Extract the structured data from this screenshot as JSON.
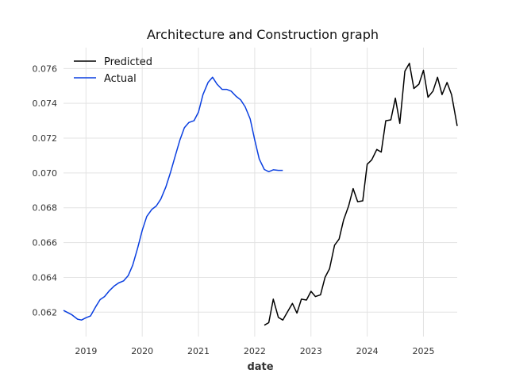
{
  "chart_data": {
    "type": "line",
    "title": "Architecture and Construction graph",
    "xlabel": "date",
    "ylabel": "",
    "xlim": [
      2018.6,
      2025.6
    ],
    "ylim": [
      0.0606,
      0.0772
    ],
    "x_ticks": [
      2019,
      2020,
      2021,
      2022,
      2023,
      2024,
      2025
    ],
    "x_tick_labels": [
      "2019",
      "2020",
      "2021",
      "2022",
      "2023",
      "2024",
      "2025"
    ],
    "y_ticks": [
      0.062,
      0.064,
      0.066,
      0.068,
      0.07,
      0.072,
      0.074,
      0.076
    ],
    "y_tick_labels": [
      "0.062",
      "0.064",
      "0.066",
      "0.068",
      "0.070",
      "0.072",
      "0.074",
      "0.076"
    ],
    "grid": true,
    "legend": {
      "position": "top-left",
      "entries": [
        "Predicted",
        "Actual"
      ]
    },
    "series": [
      {
        "name": "Predicted",
        "color": "#000000",
        "x": [
          2022.17,
          2022.25,
          2022.33,
          2022.42,
          2022.5,
          2022.58,
          2022.67,
          2022.75,
          2022.83,
          2022.92,
          2023.0,
          2023.08,
          2023.17,
          2023.25,
          2023.33,
          2023.42,
          2023.5,
          2023.58,
          2023.67,
          2023.75,
          2023.83,
          2023.92,
          2024.0,
          2024.08,
          2024.17,
          2024.25,
          2024.33,
          2024.42,
          2024.5,
          2024.58,
          2024.67,
          2024.75,
          2024.83,
          2024.92,
          2025.0,
          2025.08,
          2025.17,
          2025.25,
          2025.33,
          2025.42,
          2025.5,
          2025.6
        ],
        "y": [
          0.06125,
          0.0614,
          0.06275,
          0.0617,
          0.06155,
          0.062,
          0.0625,
          0.06195,
          0.06275,
          0.0627,
          0.0632,
          0.0629,
          0.063,
          0.064,
          0.0645,
          0.06585,
          0.0662,
          0.0673,
          0.0681,
          0.0691,
          0.06835,
          0.0684,
          0.0705,
          0.07075,
          0.07135,
          0.0712,
          0.073,
          0.07305,
          0.0743,
          0.07285,
          0.07585,
          0.0763,
          0.07485,
          0.0751,
          0.0759,
          0.07435,
          0.0747,
          0.0755,
          0.0745,
          0.0752,
          0.0745,
          0.0727
        ]
      },
      {
        "name": "Actual",
        "color": "#0a3fe0",
        "x": [
          2018.6,
          2018.75,
          2018.85,
          2018.92,
          2019.0,
          2019.08,
          2019.17,
          2019.25,
          2019.33,
          2019.42,
          2019.5,
          2019.58,
          2019.67,
          2019.75,
          2019.83,
          2019.92,
          2020.0,
          2020.08,
          2020.17,
          2020.25,
          2020.33,
          2020.42,
          2020.5,
          2020.58,
          2020.67,
          2020.75,
          2020.83,
          2020.92,
          2021.0,
          2021.08,
          2021.17,
          2021.25,
          2021.33,
          2021.42,
          2021.5,
          2021.58,
          2021.67,
          2021.75,
          2021.83,
          2021.92,
          2022.0,
          2022.08,
          2022.17,
          2022.25,
          2022.33,
          2022.42,
          2022.5
        ],
        "y": [
          0.0621,
          0.06185,
          0.0616,
          0.06155,
          0.06168,
          0.06178,
          0.0623,
          0.06272,
          0.0629,
          0.06325,
          0.0635,
          0.06368,
          0.0638,
          0.0641,
          0.0647,
          0.0657,
          0.0667,
          0.0675,
          0.0679,
          0.0681,
          0.0685,
          0.0692,
          0.07,
          0.0709,
          0.0719,
          0.0726,
          0.0729,
          0.073,
          0.0735,
          0.0745,
          0.0752,
          0.0755,
          0.0751,
          0.0748,
          0.0748,
          0.0747,
          0.0744,
          0.0742,
          0.0738,
          0.0731,
          0.0719,
          0.0708,
          0.0702,
          0.07007,
          0.07018,
          0.07015,
          0.07015
        ]
      }
    ]
  }
}
